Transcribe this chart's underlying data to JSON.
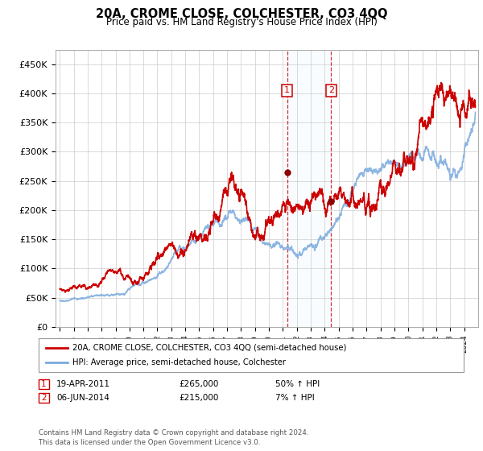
{
  "title": "20A, CROME CLOSE, COLCHESTER, CO3 4QQ",
  "subtitle": "Price paid vs. HM Land Registry's House Price Index (HPI)",
  "legend_line1": "20A, CROME CLOSE, COLCHESTER, CO3 4QQ (semi-detached house)",
  "legend_line2": "HPI: Average price, semi-detached house, Colchester",
  "footer": "Contains HM Land Registry data © Crown copyright and database right 2024.\nThis data is licensed under the Open Government Licence v3.0.",
  "sale1_label": "1",
  "sale1_date": "19-APR-2011",
  "sale1_price": "£265,000",
  "sale1_hpi": "50% ↑ HPI",
  "sale2_label": "2",
  "sale2_date": "06-JUN-2014",
  "sale2_price": "£215,000",
  "sale2_hpi": "7% ↑ HPI",
  "ylim": [
    0,
    475000
  ],
  "yticks": [
    0,
    50000,
    100000,
    150000,
    200000,
    250000,
    300000,
    350000,
    400000,
    450000
  ],
  "ytick_labels": [
    "£0",
    "£50K",
    "£100K",
    "£150K",
    "£200K",
    "£250K",
    "£300K",
    "£350K",
    "£400K",
    "£450K"
  ],
  "red_line_color": "#cc0000",
  "blue_line_color": "#7aaadd",
  "sale1_x": 2011.3,
  "sale1_price_val": 265000,
  "sale2_x": 2014.45,
  "sale2_price_val": 215000,
  "shade_color": "#ddeeff",
  "vline_color": "#cc0000",
  "xlim_left": 1994.7,
  "xlim_right": 2025.0
}
